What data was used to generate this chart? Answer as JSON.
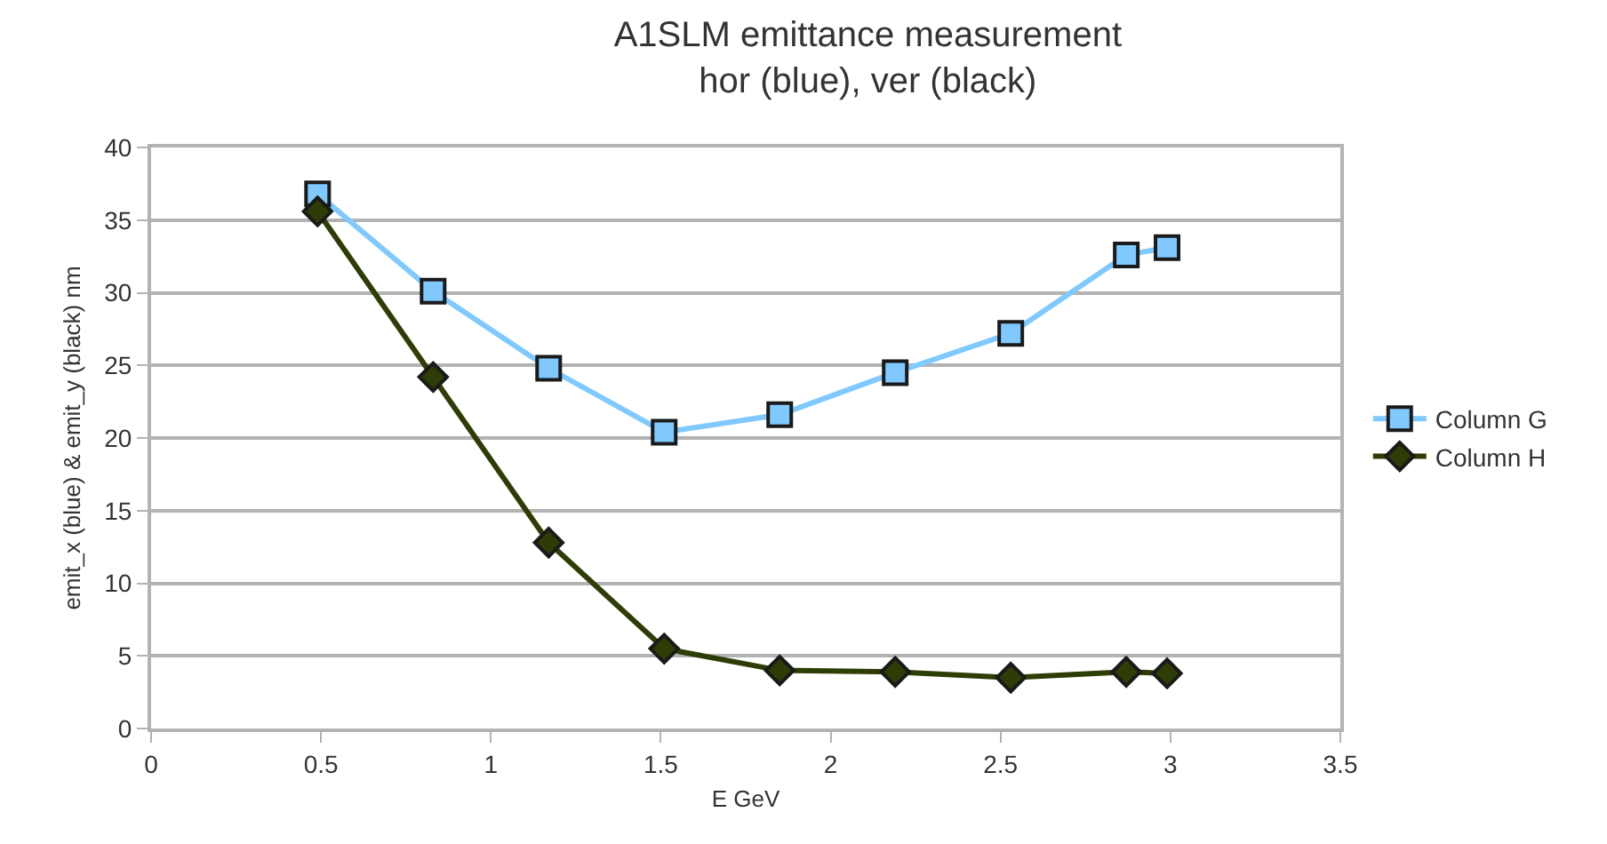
{
  "chart_data": {
    "type": "line",
    "title": "A1SLM emittance measurement\nhor (blue), ver (black)",
    "xlabel": "E GeV",
    "ylabel": "emit_x (blue) & emit_y (black) nm",
    "x": [
      0.49,
      0.83,
      1.17,
      1.51,
      1.85,
      2.19,
      2.53,
      2.87,
      2.99
    ],
    "series": [
      {
        "name": "Column G",
        "color": "#7fc9ff",
        "marker": "square",
        "values": [
          36.8,
          30.1,
          24.8,
          20.4,
          21.6,
          24.5,
          27.2,
          32.6,
          33.1
        ]
      },
      {
        "name": "Column H",
        "color": "#2e3d05",
        "marker": "diamond",
        "values": [
          35.6,
          24.2,
          12.8,
          5.5,
          4.0,
          3.9,
          3.5,
          3.9,
          3.8
        ]
      }
    ],
    "xlim": [
      0,
      3.5
    ],
    "xticks": [
      0,
      0.5,
      1,
      1.5,
      2,
      2.5,
      3,
      3.5
    ],
    "ylim": [
      0,
      40
    ],
    "yticks": [
      0,
      5,
      10,
      15,
      20,
      25,
      30,
      35,
      40
    ],
    "grid": "y",
    "legend": "right",
    "line_style": "solid"
  }
}
